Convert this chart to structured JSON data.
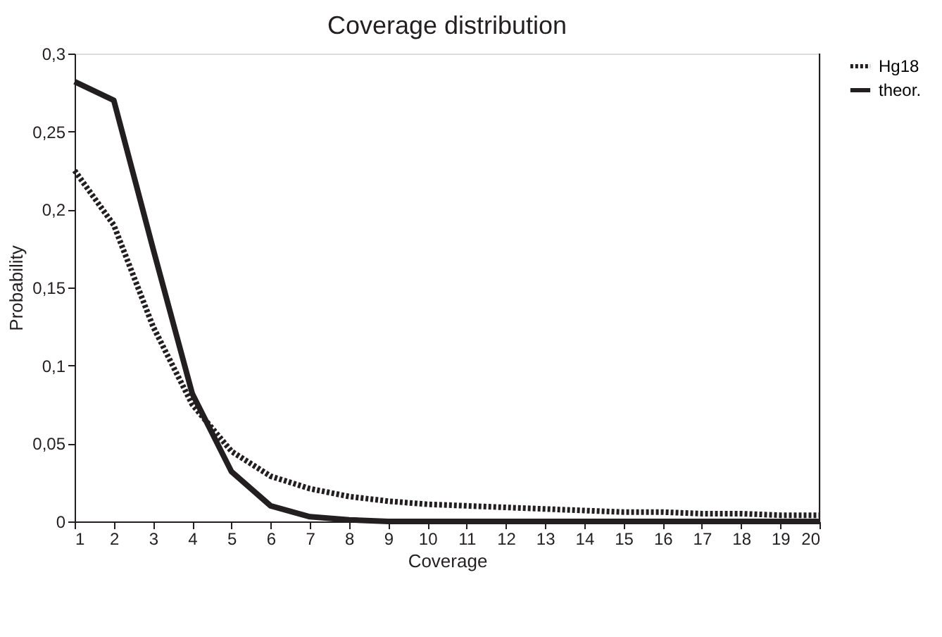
{
  "chart_data": {
    "type": "line",
    "title": "Coverage distribution",
    "xlabel": "Coverage",
    "ylabel": "Probability",
    "x": [
      1,
      2,
      3,
      4,
      5,
      6,
      7,
      8,
      9,
      10,
      11,
      12,
      13,
      14,
      15,
      16,
      17,
      18,
      19,
      20
    ],
    "series": [
      {
        "name": "Hg18",
        "color": "#231f20",
        "line_style": "dotted",
        "values": [
          0.225,
          0.19,
          0.125,
          0.075,
          0.045,
          0.029,
          0.021,
          0.016,
          0.013,
          0.011,
          0.01,
          0.009,
          0.008,
          0.007,
          0.006,
          0.006,
          0.005,
          0.005,
          0.004,
          0.004
        ]
      },
      {
        "name": "theor.",
        "color": "#231f20",
        "line_style": "solid",
        "values": [
          0.282,
          0.27,
          0.175,
          0.082,
          0.032,
          0.01,
          0.003,
          0.001,
          0,
          0,
          0,
          0,
          0,
          0,
          0,
          0,
          0,
          0,
          0,
          0
        ]
      }
    ],
    "xlim": [
      1,
      20
    ],
    "xticks": [
      1,
      2,
      3,
      4,
      5,
      6,
      7,
      8,
      9,
      10,
      11,
      12,
      13,
      14,
      15,
      16,
      17,
      18,
      19,
      20
    ],
    "ylim": [
      0,
      0.3
    ],
    "yticks": [
      0,
      {
        "value": 0.05,
        "label": "0,05"
      },
      {
        "value": 0.1,
        "label": "0,1"
      },
      {
        "value": 0.15,
        "label": "0,15"
      },
      {
        "value": 0.2,
        "label": "0,2"
      },
      {
        "value": 0.25,
        "label": "0,25"
      },
      {
        "value": 0.3,
        "label": "0,3"
      }
    ],
    "grid": false,
    "legend": "right",
    "marker": "none"
  }
}
